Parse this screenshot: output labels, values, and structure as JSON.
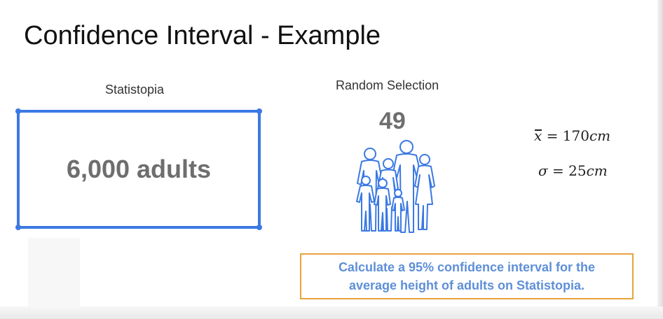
{
  "slide": {
    "title": "Confidence Interval - Example"
  },
  "population": {
    "label": "Statistopia",
    "value": "6,000 adults",
    "box_color": "#3b79e4"
  },
  "sample": {
    "label": "Random Selection",
    "size": "49",
    "icon": "people-group-icon",
    "icon_color": "#3b79e4"
  },
  "statistics": {
    "mean": {
      "symbol": "x",
      "operator": "=",
      "value": "170",
      "unit": "cm"
    },
    "std_dev": {
      "symbol": "σ",
      "operator": "=",
      "value": "25",
      "unit": "cm"
    }
  },
  "task": {
    "line1": "Calculate a 95% confidence interval for the",
    "line2": "average height of adults on Statistopia.",
    "border_color": "#e8a33c",
    "text_color": "#5e8fd8"
  }
}
